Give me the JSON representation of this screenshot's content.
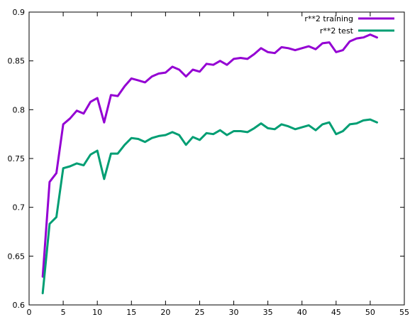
{
  "chart_data": {
    "type": "line",
    "title": "",
    "xlabel": "",
    "ylabel": "",
    "xlim": [
      0,
      55
    ],
    "ylim": [
      0.6,
      0.9
    ],
    "xticks": [
      0,
      5,
      10,
      15,
      20,
      25,
      30,
      35,
      40,
      45,
      50,
      55
    ],
    "yticks": [
      0.6,
      0.65,
      0.7,
      0.75,
      0.8,
      0.85,
      0.9
    ],
    "xtick_labels": [
      "0",
      "5",
      "10",
      "15",
      "20",
      "25",
      "30",
      "35",
      "40",
      "45",
      "50",
      "55"
    ],
    "ytick_labels": [
      "0.6",
      "0.65",
      "0.7",
      "0.75",
      "0.8",
      "0.85",
      "0.9"
    ],
    "grid": false,
    "legend_position": "top-right",
    "x": [
      2,
      3,
      4,
      5,
      6,
      7,
      8,
      9,
      10,
      11,
      12,
      13,
      14,
      15,
      16,
      17,
      18,
      19,
      20,
      21,
      22,
      23,
      24,
      25,
      26,
      27,
      28,
      29,
      30,
      31,
      32,
      33,
      34,
      35,
      36,
      37,
      38,
      39,
      40,
      41,
      42,
      43,
      44,
      45,
      46,
      47,
      48,
      49,
      50,
      51
    ],
    "series": [
      {
        "name": "r**2 training",
        "color": "#9400d3",
        "values": [
          0.629,
          0.726,
          0.735,
          0.785,
          0.791,
          0.799,
          0.796,
          0.808,
          0.812,
          0.787,
          0.815,
          0.814,
          0.824,
          0.832,
          0.83,
          0.828,
          0.834,
          0.837,
          0.838,
          0.844,
          0.841,
          0.834,
          0.841,
          0.839,
          0.847,
          0.846,
          0.85,
          0.846,
          0.852,
          0.853,
          0.852,
          0.857,
          0.863,
          0.859,
          0.858,
          0.864,
          0.863,
          0.861,
          0.863,
          0.865,
          0.862,
          0.868,
          0.869,
          0.859,
          0.861,
          0.87,
          0.873,
          0.874,
          0.877,
          0.874
        ]
      },
      {
        "name": "r**2 test",
        "color": "#009e73",
        "values": [
          0.612,
          0.683,
          0.69,
          0.74,
          0.742,
          0.745,
          0.743,
          0.754,
          0.758,
          0.729,
          0.755,
          0.755,
          0.764,
          0.771,
          0.77,
          0.767,
          0.771,
          0.773,
          0.774,
          0.777,
          0.774,
          0.764,
          0.772,
          0.769,
          0.776,
          0.775,
          0.779,
          0.774,
          0.778,
          0.778,
          0.777,
          0.781,
          0.786,
          0.781,
          0.78,
          0.785,
          0.783,
          0.78,
          0.782,
          0.784,
          0.779,
          0.785,
          0.787,
          0.775,
          0.778,
          0.785,
          0.786,
          0.789,
          0.79,
          0.787
        ]
      }
    ]
  }
}
